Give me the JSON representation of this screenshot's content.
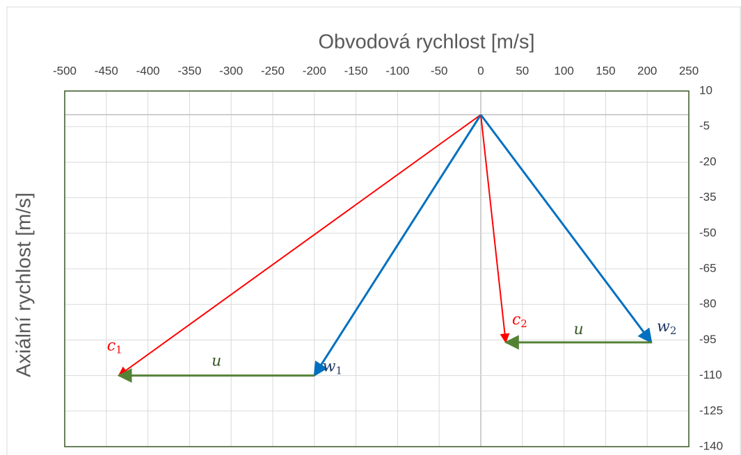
{
  "chart_data": {
    "type": "vector",
    "xlabel": "Obvodová rychlost [m/s]",
    "ylabel": "Axiální rychlost [m/s]",
    "xlim": [
      -500,
      250
    ],
    "xticks": [
      -500,
      -450,
      -400,
      -350,
      -300,
      -250,
      -200,
      -150,
      -100,
      -50,
      0,
      50,
      100,
      150,
      200,
      250
    ],
    "ylim": [
      -140,
      10
    ],
    "yticks": [
      10,
      -5,
      -20,
      -35,
      -50,
      -65,
      -80,
      -95,
      -110,
      -125,
      -140
    ],
    "grid": true,
    "vectors": [
      {
        "label": "c",
        "sub": "1",
        "color": "#ff0000",
        "label_color": "#ff0000",
        "from": [
          0,
          0
        ],
        "to": [
          -435,
          -110
        ]
      },
      {
        "label": "w",
        "sub": "1",
        "color": "#0070c0",
        "label_color": "#1f3864",
        "from": [
          0,
          0
        ],
        "to": [
          -200,
          -110
        ]
      },
      {
        "label": "u",
        "color": "#548235",
        "label_color": "#375623",
        "from": [
          -200,
          -110
        ],
        "to": [
          -435,
          -110
        ]
      },
      {
        "label": "c",
        "sub": "2",
        "color": "#ff0000",
        "label_color": "#ff0000",
        "from": [
          0,
          0
        ],
        "to": [
          30,
          -96
        ]
      },
      {
        "label": "w",
        "sub": "2",
        "color": "#0070c0",
        "label_color": "#1f3864",
        "from": [
          0,
          0
        ],
        "to": [
          205,
          -96
        ]
      },
      {
        "label": "u",
        "color": "#548235",
        "label_color": "#375623",
        "from": [
          205,
          -96
        ],
        "to": [
          30,
          -96
        ]
      }
    ]
  }
}
